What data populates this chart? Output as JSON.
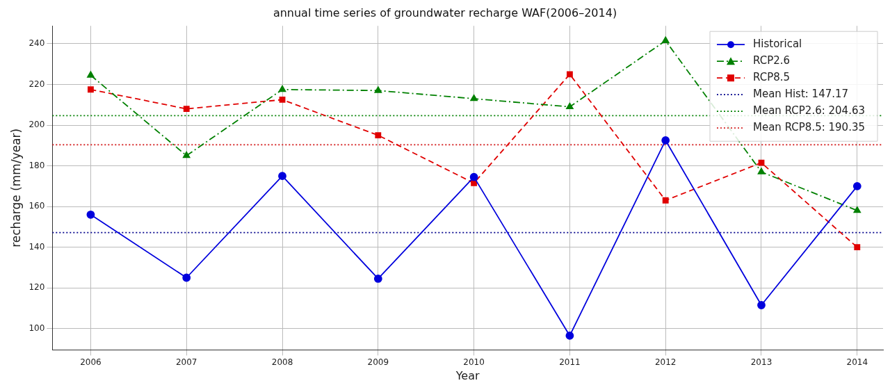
{
  "chart_data": {
    "type": "line",
    "title": "annual time series of groundwater recharge WAF(2006–2014)",
    "xlabel": "Year",
    "ylabel": "recharge (mm/year)",
    "x": [
      2006,
      2007,
      2008,
      2009,
      2010,
      2011,
      2012,
      2013,
      2014
    ],
    "series": [
      {
        "name": "Historical",
        "color": "#0000dd",
        "marker": "circle",
        "line_style": "solid",
        "values": [
          156,
          125,
          175,
          124.5,
          174.5,
          96.5,
          192.5,
          111.5,
          170
        ]
      },
      {
        "name": "RCP2.6",
        "color": "#008000",
        "marker": "triangle",
        "line_style": "dashdot",
        "values": [
          224.5,
          185,
          217.5,
          217,
          213,
          209,
          241.5,
          177,
          158
        ]
      },
      {
        "name": "RCP8.5",
        "color": "#e00000",
        "marker": "square",
        "line_style": "dashed",
        "values": [
          217.5,
          208,
          212.5,
          195,
          171.5,
          225,
          163,
          181.5,
          140
        ]
      }
    ],
    "ref_lines": [
      {
        "axis": "y",
        "value": 147.17,
        "label": "Mean Hist: 147.17",
        "color": "#00008b",
        "line_style": "dotted"
      },
      {
        "axis": "y",
        "value": 204.63,
        "label": "Mean RCP2.6: 204.63",
        "color": "#008000",
        "line_style": "dotted"
      },
      {
        "axis": "y",
        "value": 190.35,
        "label": "Mean RCP8.5: 190.35",
        "color": "#d62728",
        "line_style": "dotted"
      }
    ],
    "xlim": [
      2005.6,
      2014.27
    ],
    "ylim": [
      89.5,
      248.8
    ],
    "xticks": [
      2006,
      2007,
      2008,
      2009,
      2010,
      2011,
      2012,
      2013,
      2014
    ],
    "yticks": [
      100,
      120,
      140,
      160,
      180,
      200,
      220,
      240
    ],
    "grid": true,
    "legend": "top right"
  }
}
